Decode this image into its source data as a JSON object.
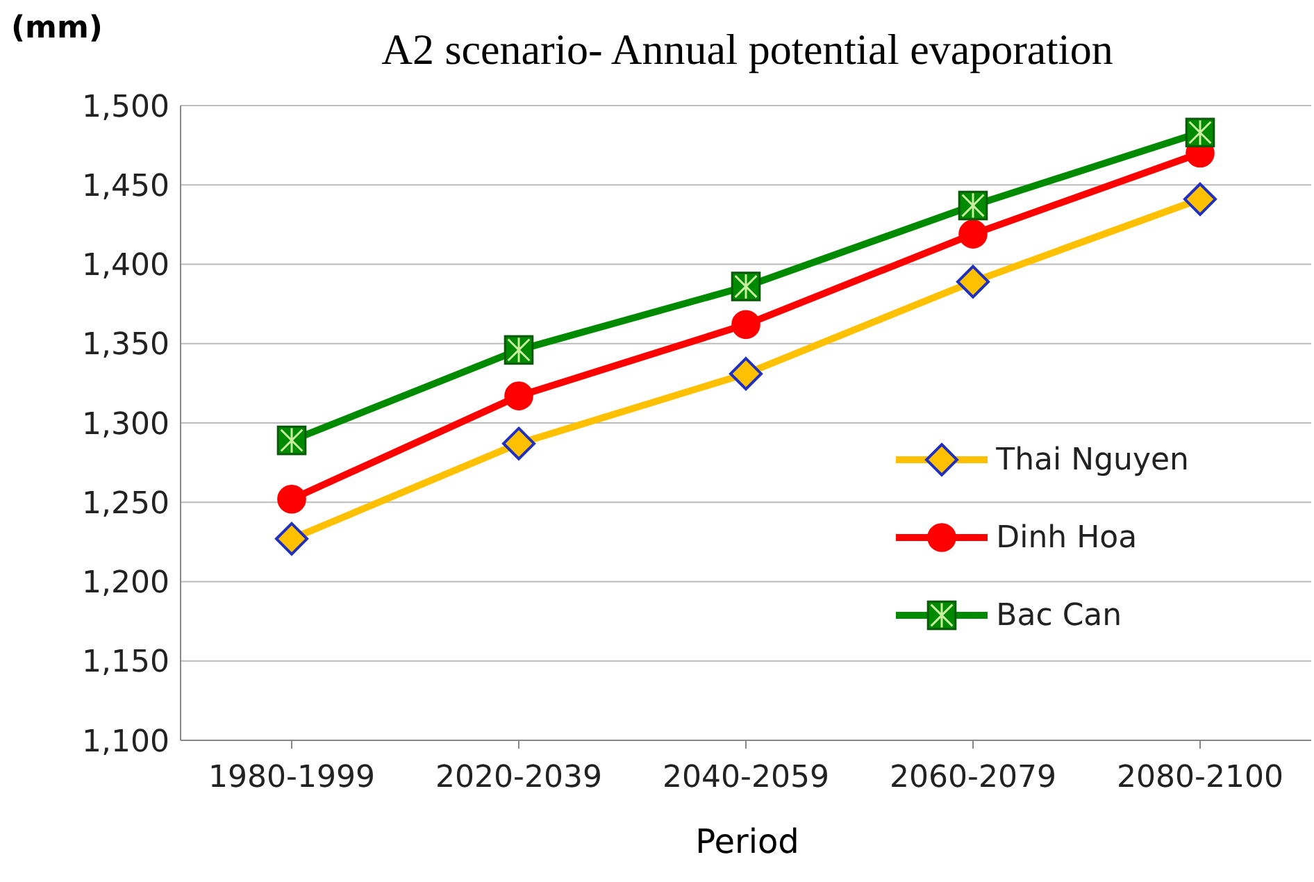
{
  "chart_data": {
    "type": "line",
    "title": "A2 scenario- Annual potential evaporation",
    "ylabel": "(mm)",
    "xlabel": "Period",
    "categories": [
      "1980-1999",
      "2020-2039",
      "2040-2059",
      "2060-2079",
      "2080-2100"
    ],
    "series": [
      {
        "name": "Thai Nguyen",
        "color": "#ffc000",
        "marker": "diamond",
        "values": [
          1227,
          1287,
          1331,
          1389,
          1441
        ]
      },
      {
        "name": "Dinh Hoa",
        "color": "#ff0000",
        "marker": "circle",
        "values": [
          1252,
          1317,
          1362,
          1419,
          1470
        ]
      },
      {
        "name": "Bac Can",
        "color": "#008a00",
        "marker": "square",
        "values": [
          1289,
          1346,
          1386,
          1437,
          1483
        ]
      }
    ],
    "ylim": [
      1100,
      1500
    ],
    "yticks": [
      {
        "value": 1100,
        "label": "1,100"
      },
      {
        "value": 1150,
        "label": "1,150"
      },
      {
        "value": 1200,
        "label": "1,200"
      },
      {
        "value": 1250,
        "label": "1,250"
      },
      {
        "value": 1300,
        "label": "1,300"
      },
      {
        "value": 1350,
        "label": "1,350"
      },
      {
        "value": 1400,
        "label": "1,400"
      },
      {
        "value": 1450,
        "label": "1,450"
      },
      {
        "value": 1500,
        "label": "1,500"
      }
    ],
    "grid": "y",
    "legend": "right",
    "line_style": "solid"
  }
}
